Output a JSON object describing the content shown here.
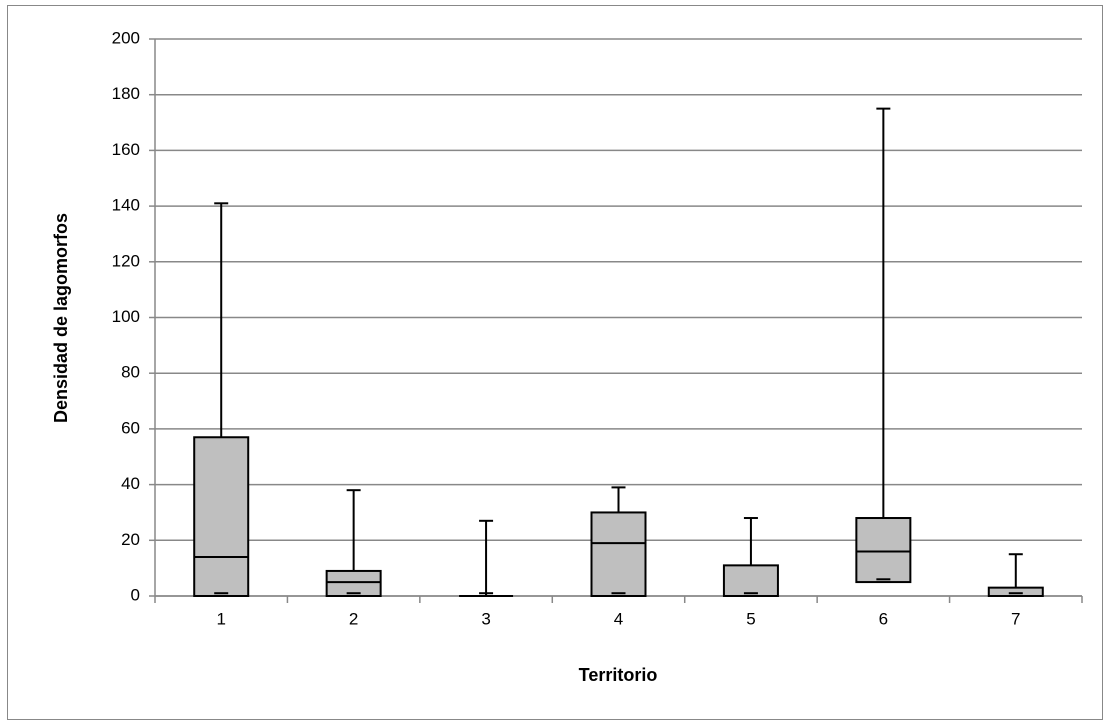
{
  "chart_data": {
    "type": "box",
    "x_label": "Territorio",
    "y_label": "Densidad de lagomorfos",
    "categories": [
      "1",
      "2",
      "3",
      "4",
      "5",
      "6",
      "7"
    ],
    "min": [
      1,
      1,
      1,
      1,
      1,
      6,
      1
    ],
    "q1": [
      0,
      0,
      0,
      0,
      0,
      5,
      0
    ],
    "median": [
      14,
      5,
      0,
      19,
      0,
      16,
      0
    ],
    "q3": [
      57,
      9,
      0,
      30,
      11,
      28,
      3
    ],
    "max": [
      141,
      38,
      27,
      39,
      28,
      175,
      15
    ],
    "color": "#bfbfbf",
    "ylim": [
      0,
      200
    ],
    "yticks": [
      0,
      20,
      40,
      60,
      80,
      100,
      120,
      140,
      160,
      180,
      200
    ],
    "grid": true
  }
}
